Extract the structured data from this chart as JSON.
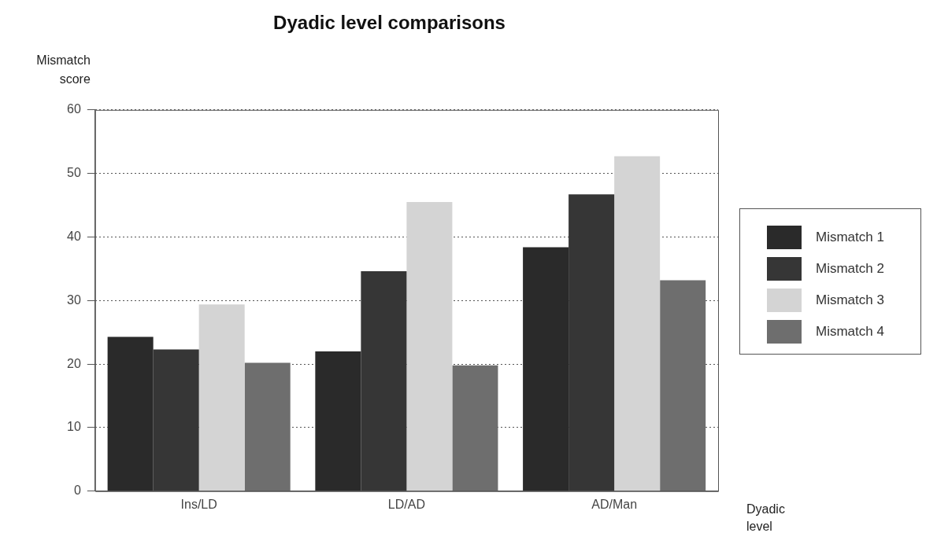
{
  "chart_data": {
    "type": "bar",
    "title": "Dyadic level comparisons",
    "xlabel": "Dyadic level",
    "ylabel": "Mismatch score",
    "categories": [
      "Ins/LD",
      "LD/AD",
      "AD/Man"
    ],
    "series": [
      {
        "name": "Mismatch 1",
        "color": "#2a2a2a",
        "values": [
          24.3,
          22.0,
          38.4
        ]
      },
      {
        "name": "Mismatch 2",
        "color": "#363636",
        "values": [
          22.3,
          34.6,
          46.7
        ]
      },
      {
        "name": "Mismatch 3",
        "color": "#d4d4d4",
        "values": [
          29.4,
          45.5,
          52.7
        ]
      },
      {
        "name": "Mismatch 4",
        "color": "#6e6e6e",
        "values": [
          20.2,
          19.8,
          33.2
        ]
      }
    ],
    "ylim": [
      0,
      60
    ],
    "yticks": [
      0,
      10,
      20,
      30,
      40,
      50,
      60
    ],
    "grid": "y",
    "legend": "right"
  }
}
